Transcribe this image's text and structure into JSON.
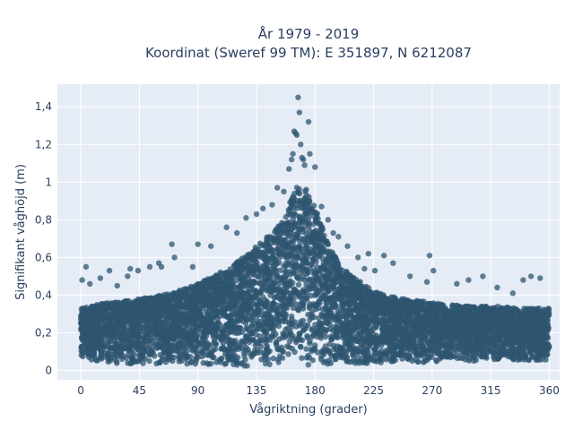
{
  "chart_data": {
    "type": "scatter",
    "title_line1": "År 1979 - 2019",
    "title_line2": "Koordinat (Sweref 99 TM): E 351897, N 6212087",
    "xlabel": "Vågriktning (grader)",
    "ylabel": "Signifikant våghöjd (m)",
    "xlim": [
      -18,
      368
    ],
    "ylim": [
      -0.05,
      1.52
    ],
    "xticks": [
      0,
      45,
      90,
      135,
      180,
      225,
      270,
      315,
      360
    ],
    "xtick_labels": [
      "0",
      "45",
      "90",
      "135",
      "180",
      "225",
      "270",
      "315",
      "360"
    ],
    "yticks": [
      0,
      0.2,
      0.4,
      0.6,
      0.8,
      1.0,
      1.2,
      1.4
    ],
    "ytick_labels": [
      "0",
      "0,2",
      "0,4",
      "0,6",
      "0,8",
      "1",
      "1,2",
      "1,4"
    ],
    "grid": true,
    "marker_color": "#2f5570",
    "marker_opacity": 0.75,
    "background_color": "#e5ecf6",
    "envelope": {
      "x": [
        0,
        20,
        45,
        70,
        90,
        110,
        125,
        135,
        145,
        155,
        160,
        165,
        170,
        175,
        180,
        190,
        200,
        215,
        225,
        240,
        260,
        280,
        300,
        320,
        340,
        360
      ],
      "y_max": [
        0.33,
        0.36,
        0.38,
        0.41,
        0.46,
        0.53,
        0.6,
        0.66,
        0.72,
        0.8,
        0.88,
        0.97,
        1.0,
        0.94,
        0.87,
        0.67,
        0.55,
        0.47,
        0.42,
        0.39,
        0.37,
        0.35,
        0.34,
        0.34,
        0.33,
        0.33
      ],
      "y_min": [
        0.06,
        0.04,
        0.03,
        0.03,
        0.03,
        0.02,
        0.02,
        0.02,
        0.02,
        0.01,
        0.01,
        0.01,
        0.01,
        0.02,
        0.02,
        0.02,
        0.03,
        0.03,
        0.04,
        0.04,
        0.04,
        0.05,
        0.05,
        0.05,
        0.05,
        0.05
      ]
    },
    "outliers": {
      "x": [
        1,
        4,
        7,
        15,
        22,
        28,
        36,
        38,
        44,
        53,
        60,
        62,
        70,
        72,
        86,
        90,
        100,
        112,
        120,
        127,
        135,
        140,
        147,
        151,
        156,
        160,
        162,
        163,
        164,
        165,
        166,
        167,
        168,
        169,
        170,
        171,
        172,
        175,
        176,
        180,
        185,
        190,
        194,
        198,
        205,
        213,
        218,
        221,
        226,
        233,
        240,
        253,
        266,
        268,
        271,
        289,
        298,
        309,
        320,
        332,
        340,
        346,
        353
      ],
      "y": [
        0.48,
        0.55,
        0.46,
        0.49,
        0.53,
        0.45,
        0.5,
        0.54,
        0.53,
        0.55,
        0.57,
        0.55,
        0.67,
        0.6,
        0.55,
        0.67,
        0.66,
        0.76,
        0.73,
        0.81,
        0.83,
        0.86,
        0.88,
        0.97,
        0.95,
        1.07,
        1.12,
        1.15,
        1.27,
        1.26,
        1.25,
        1.45,
        1.37,
        1.2,
        1.13,
        1.12,
        1.09,
        1.32,
        1.15,
        1.08,
        0.87,
        0.8,
        0.73,
        0.71,
        0.66,
        0.6,
        0.54,
        0.62,
        0.53,
        0.61,
        0.57,
        0.5,
        0.47,
        0.61,
        0.53,
        0.46,
        0.48,
        0.5,
        0.44,
        0.41,
        0.48,
        0.5,
        0.49
      ]
    }
  }
}
